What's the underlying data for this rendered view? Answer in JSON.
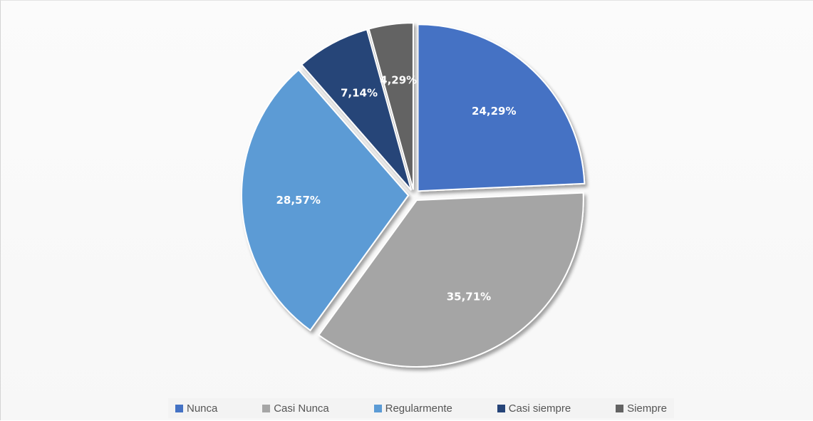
{
  "chart_data": {
    "type": "pie",
    "categories": [
      "Nunca",
      "Casi Nunca",
      "Regularmente",
      "Casi siempre",
      "Siempre"
    ],
    "values": [
      24.29,
      35.71,
      28.57,
      7.14,
      4.29
    ],
    "labels": [
      "24,29%",
      "35,71%",
      "28,57%",
      "7,14%",
      "4,29%"
    ],
    "colors": [
      "#4472c4",
      "#a5a5a5",
      "#5b9bd5",
      "#264478",
      "#636363"
    ],
    "legend_position": "bottom",
    "exploded": true,
    "title": ""
  }
}
